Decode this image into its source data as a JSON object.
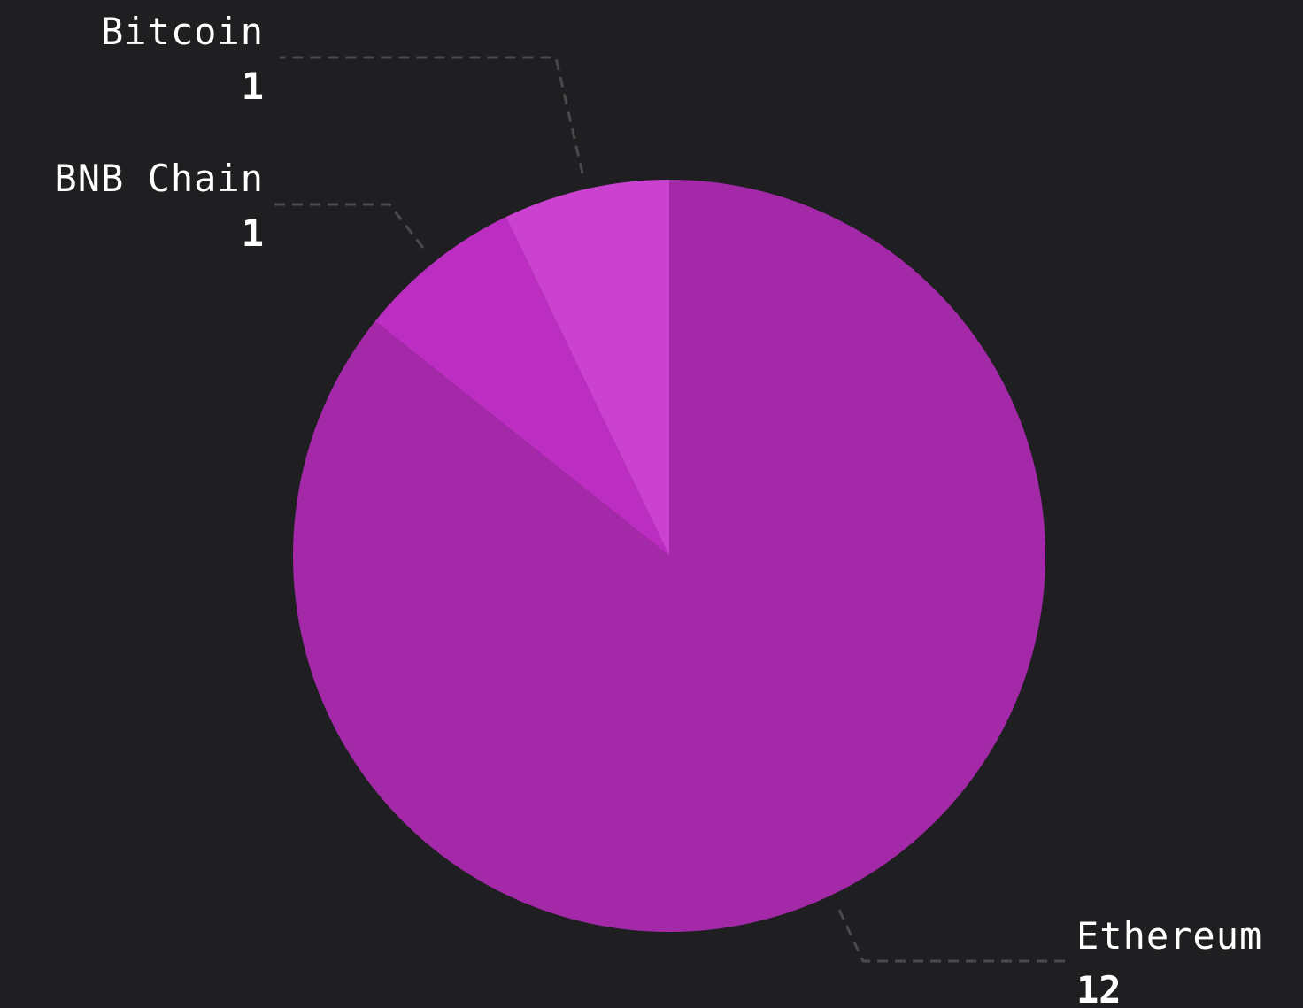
{
  "chart_data": {
    "type": "pie",
    "slices": [
      {
        "label": "Ethereum",
        "value": 12,
        "value_label": "12",
        "color": "#a429a8"
      },
      {
        "label": "BNB Chain",
        "value": 1,
        "value_label": "1",
        "color": "#bc2dc2"
      },
      {
        "label": "Bitcoin",
        "value": 1,
        "value_label": "1",
        "color": "#cc42d0"
      }
    ],
    "start_angle": "12 o'clock",
    "direction": "clockwise",
    "background": "#1f1f21",
    "leader_color": "#4a4a4d",
    "text_color": "#ffffff"
  }
}
